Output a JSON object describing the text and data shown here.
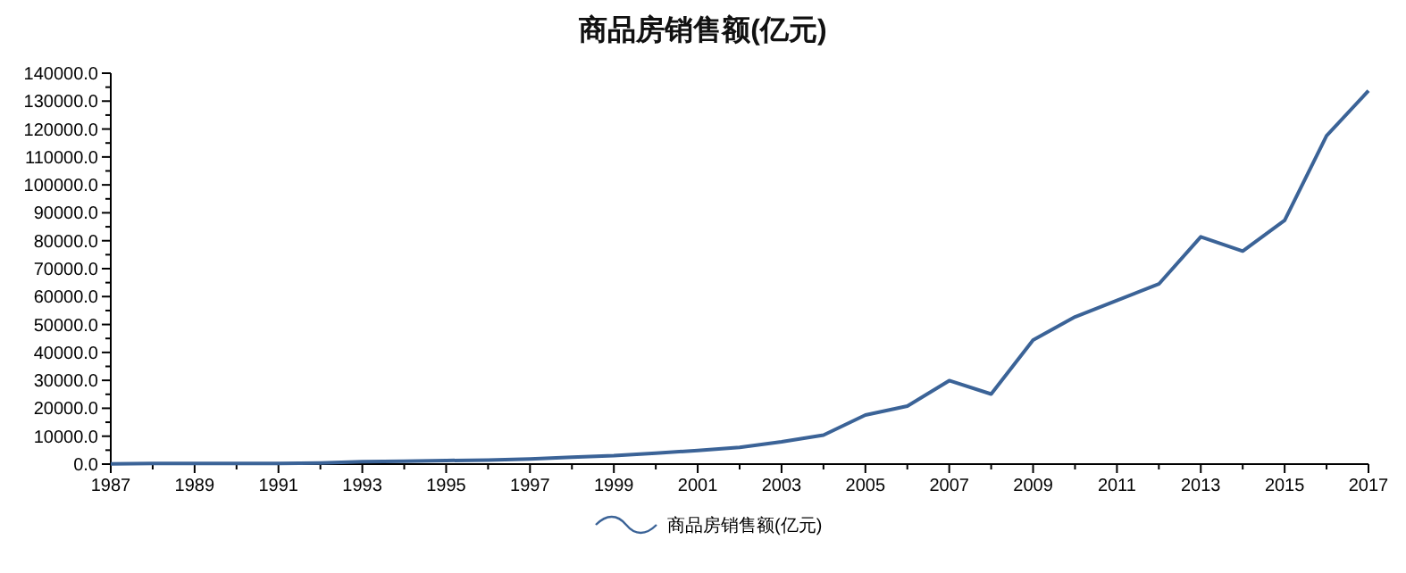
{
  "chart_data": {
    "type": "line",
    "title": "商品房销售额(亿元)",
    "x": [
      1987,
      1988,
      1989,
      1990,
      1991,
      1992,
      1993,
      1994,
      1995,
      1996,
      1997,
      1998,
      1999,
      2000,
      2001,
      2002,
      2003,
      2004,
      2005,
      2006,
      2007,
      2008,
      2009,
      2010,
      2011,
      2012,
      2013,
      2014,
      2015,
      2016,
      2017
    ],
    "series": [
      {
        "name": "商品房销售额(亿元)",
        "color": "#3b6397",
        "values": [
          100,
          200,
          200,
          200,
          200,
          400,
          900,
          1000,
          1300,
          1400,
          1800,
          2500,
          3000,
          3900,
          4900,
          6000,
          8000,
          10400,
          17600,
          20800,
          29900,
          25100,
          44400,
          52700,
          58600,
          64500,
          81400,
          76300,
          87300,
          117600,
          133700
        ]
      }
    ],
    "xlim": [
      1987,
      2017
    ],
    "xticks": [
      1987,
      {
        "value": 1988,
        "label": null
      },
      1989,
      {
        "value": 1990,
        "label": null
      },
      1991,
      {
        "value": 1992,
        "label": null
      },
      1993,
      {
        "value": 1994,
        "label": null
      },
      1995,
      {
        "value": 1996,
        "label": null
      },
      1997,
      {
        "value": 1998,
        "label": null
      },
      1999,
      {
        "value": 2000,
        "label": null
      },
      2001,
      {
        "value": 2002,
        "label": null
      },
      2003,
      {
        "value": 2004,
        "label": null
      },
      2005,
      {
        "value": 2006,
        "label": null
      },
      2007,
      {
        "value": 2008,
        "label": null
      },
      2009,
      {
        "value": 2010,
        "label": null
      },
      2011,
      {
        "value": 2012,
        "label": null
      },
      2013,
      {
        "value": 2014,
        "label": null
      },
      2015,
      {
        "value": 2016,
        "label": null
      },
      2017
    ],
    "ylim": [
      0,
      140000
    ],
    "yticks": [
      {
        "value": 0,
        "label": "0.0"
      },
      {
        "value": 5000,
        "label": null
      },
      {
        "value": 10000,
        "label": "10000.0"
      },
      {
        "value": 15000,
        "label": null
      },
      {
        "value": 20000,
        "label": "20000.0"
      },
      {
        "value": 25000,
        "label": null
      },
      {
        "value": 30000,
        "label": "30000.0"
      },
      {
        "value": 35000,
        "label": null
      },
      {
        "value": 40000,
        "label": "40000.0"
      },
      {
        "value": 45000,
        "label": null
      },
      {
        "value": 50000,
        "label": "50000.0"
      },
      {
        "value": 55000,
        "label": null
      },
      {
        "value": 60000,
        "label": "60000.0"
      },
      {
        "value": 65000,
        "label": null
      },
      {
        "value": 70000,
        "label": "70000.0"
      },
      {
        "value": 75000,
        "label": null
      },
      {
        "value": 80000,
        "label": "80000.0"
      },
      {
        "value": 85000,
        "label": null
      },
      {
        "value": 90000,
        "label": "90000.0"
      },
      {
        "value": 95000,
        "label": null
      },
      {
        "value": 100000,
        "label": "100000.0"
      },
      {
        "value": 105000,
        "label": null
      },
      {
        "value": 110000,
        "label": "110000.0"
      },
      {
        "value": 115000,
        "label": null
      },
      {
        "value": 120000,
        "label": "120000.0"
      },
      {
        "value": 125000,
        "label": null
      },
      {
        "value": 130000,
        "label": "130000.0"
      },
      {
        "value": 135000,
        "label": null
      },
      {
        "value": 140000,
        "label": "140000.0"
      }
    ],
    "grid": false,
    "legend": "bottom",
    "marker": "none",
    "line_style": "solid"
  }
}
